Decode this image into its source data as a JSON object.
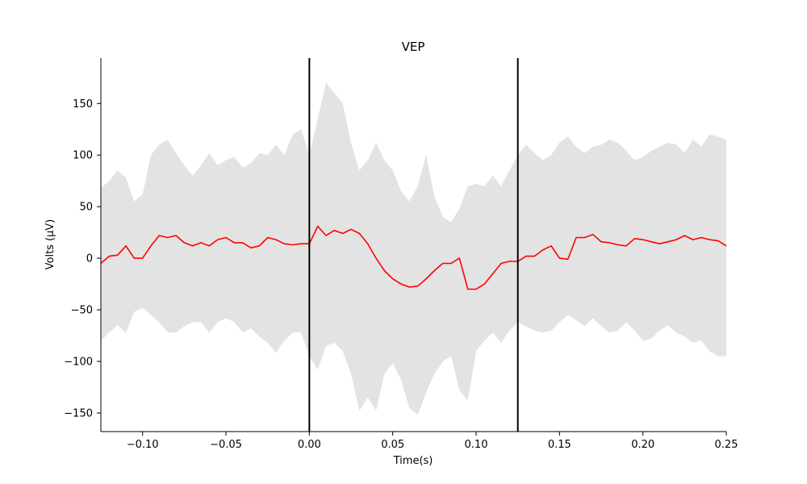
{
  "chart_data": {
    "type": "line",
    "title": "VEP",
    "xlabel": "Time(s)",
    "ylabel": "Volts (μV)",
    "xlim": [
      -0.125,
      0.25
    ],
    "ylim": [
      -168,
      194
    ],
    "grid": false,
    "x_ticks": [
      -0.1,
      -0.05,
      0.0,
      0.05,
      0.1,
      0.15,
      0.2,
      0.25
    ],
    "x_tick_labels": [
      "−0.10",
      "−0.05",
      "0.00",
      "0.05",
      "0.10",
      "0.15",
      "0.20",
      "0.25"
    ],
    "y_ticks": [
      -150,
      -100,
      -50,
      0,
      50,
      100,
      150
    ],
    "y_tick_labels": [
      "−150",
      "−100",
      "−50",
      "0",
      "50",
      "100",
      "150"
    ],
    "vertical_lines": [
      0.0,
      0.125
    ],
    "series": [
      {
        "color": "#ff0000",
        "x": [
          -0.125,
          -0.12,
          -0.115,
          -0.11,
          -0.105,
          -0.1,
          -0.095,
          -0.09,
          -0.085,
          -0.08,
          -0.075,
          -0.07,
          -0.065,
          -0.06,
          -0.055,
          -0.05,
          -0.045,
          -0.04,
          -0.035,
          -0.03,
          -0.025,
          -0.02,
          -0.015,
          -0.01,
          -0.005,
          0.0,
          0.005,
          0.01,
          0.015,
          0.02,
          0.025,
          0.03,
          0.035,
          0.04,
          0.045,
          0.05,
          0.055,
          0.06,
          0.065,
          0.07,
          0.075,
          0.08,
          0.085,
          0.09,
          0.095,
          0.1,
          0.105,
          0.11,
          0.115,
          0.12,
          0.125,
          0.13,
          0.135,
          0.14,
          0.145,
          0.15,
          0.155,
          0.16,
          0.165,
          0.17,
          0.175,
          0.18,
          0.185,
          0.19,
          0.195,
          0.2,
          0.205,
          0.21,
          0.215,
          0.22,
          0.225,
          0.23,
          0.235,
          0.24,
          0.245,
          0.25
        ],
        "values": [
          -5,
          2,
          3,
          12,
          0,
          0,
          12,
          22,
          20,
          22,
          15,
          12,
          15,
          12,
          18,
          20,
          15,
          15,
          10,
          12,
          20,
          18,
          14,
          13,
          14,
          14,
          31,
          22,
          27,
          24,
          28,
          24,
          14,
          0,
          -12,
          -20,
          -25,
          -28,
          -27,
          -20,
          -12,
          -5,
          -5,
          0,
          -30,
          -30,
          -25,
          -15,
          -5,
          -3,
          -3,
          2,
          2,
          8,
          12,
          0,
          -1,
          20,
          20,
          23,
          16,
          15,
          13,
          12,
          19,
          18,
          16,
          14,
          16,
          18,
          22,
          18,
          20,
          18,
          17,
          12
        ]
      }
    ],
    "band": {
      "color": "#e3e3e3",
      "upper": [
        68,
        75,
        85,
        78,
        55,
        62,
        100,
        110,
        115,
        102,
        90,
        80,
        90,
        102,
        90,
        95,
        98,
        88,
        92,
        102,
        100,
        110,
        100,
        120,
        125,
        100,
        135,
        170,
        160,
        150,
        112,
        85,
        95,
        112,
        95,
        85,
        65,
        55,
        70,
        100,
        60,
        40,
        35,
        48,
        70,
        72,
        70,
        80,
        70,
        85,
        100,
        110,
        102,
        95,
        100,
        112,
        118,
        108,
        102,
        108,
        110,
        115,
        112,
        104,
        95,
        98,
        104,
        108,
        112,
        110,
        102,
        115,
        108,
        120,
        118,
        115
      ],
      "lower": [
        -80,
        -72,
        -65,
        -72,
        -52,
        -48,
        -55,
        -62,
        -72,
        -72,
        -66,
        -62,
        -62,
        -72,
        -62,
        -58,
        -62,
        -72,
        -68,
        -76,
        -82,
        -92,
        -80,
        -72,
        -72,
        -95,
        -108,
        -85,
        -82,
        -90,
        -112,
        -148,
        -135,
        -148,
        -112,
        -102,
        -118,
        -145,
        -152,
        -130,
        -112,
        -100,
        -95,
        -128,
        -138,
        -90,
        -80,
        -72,
        -82,
        -70,
        -62,
        -66,
        -70,
        -72,
        -70,
        -62,
        -55,
        -60,
        -66,
        -58,
        -66,
        -72,
        -70,
        -62,
        -70,
        -80,
        -78,
        -70,
        -65,
        -72,
        -76,
        -82,
        -80,
        -90,
        -95,
        -95
      ]
    }
  }
}
